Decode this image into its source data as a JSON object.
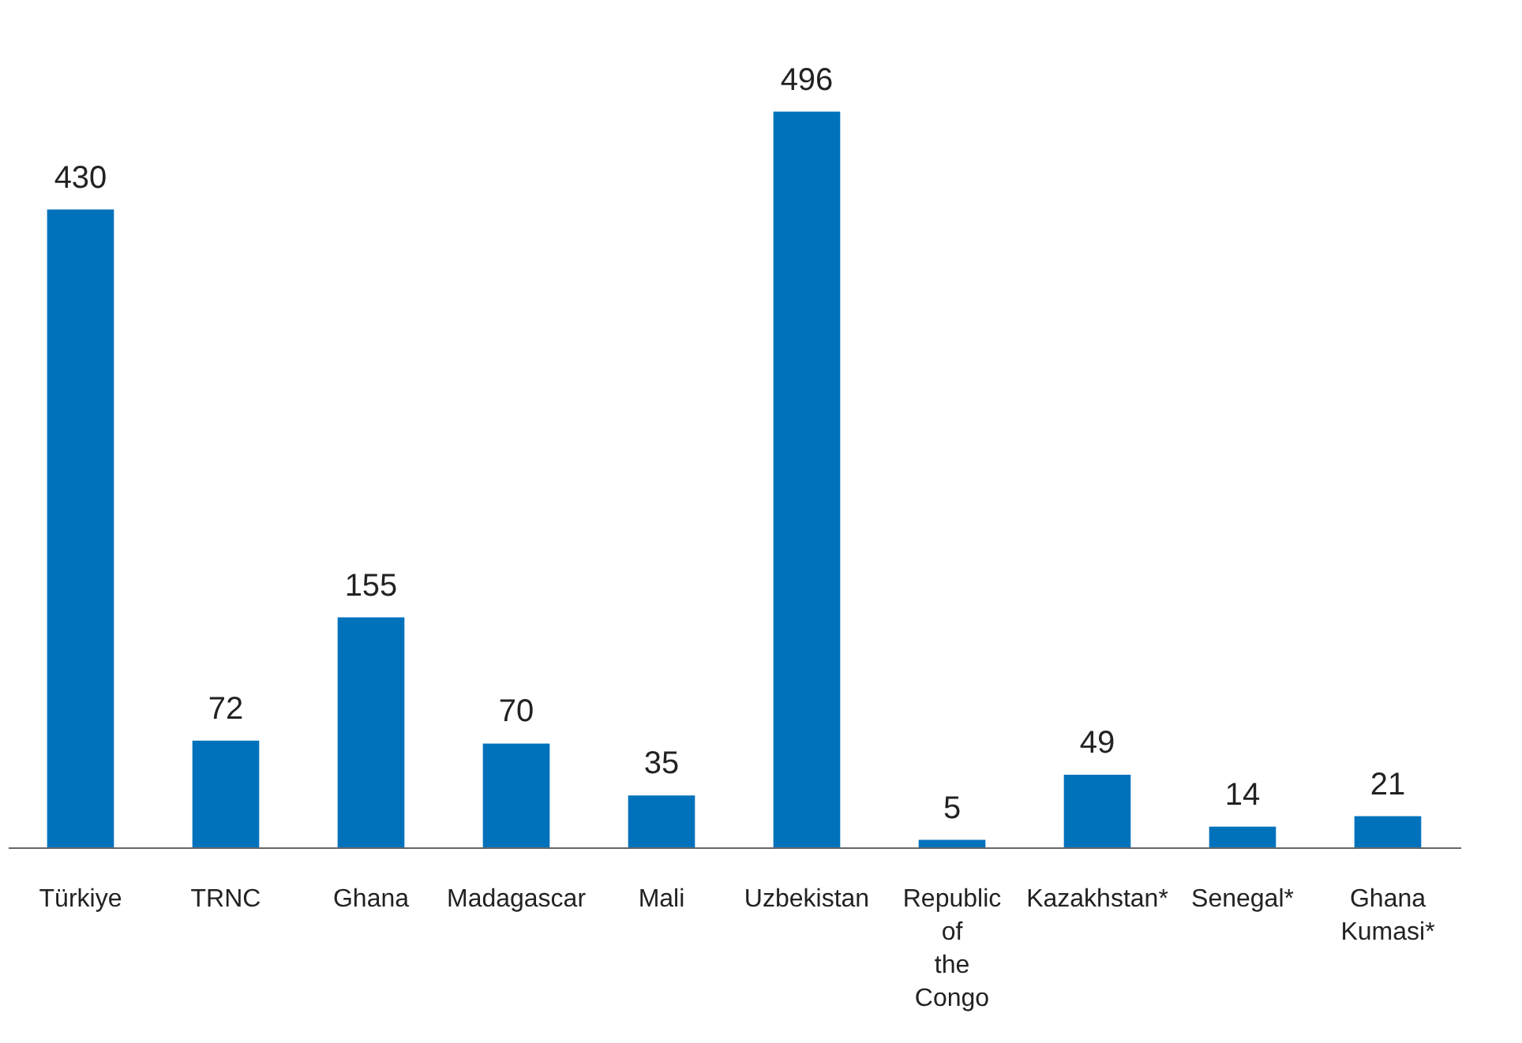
{
  "chart_data": {
    "type": "bar",
    "categories": [
      "Türkiye",
      "TRNC",
      "Ghana",
      "Madagascar",
      "Mali",
      "Uzbekistan",
      "Republic of the Congo",
      "Kazakhstan*",
      "Senegal*",
      "Ghana Kumasi*"
    ],
    "values": [
      430,
      72,
      155,
      70,
      35,
      496,
      5,
      49,
      14,
      21
    ],
    "color": "#0072bc",
    "data_labels": true
  }
}
